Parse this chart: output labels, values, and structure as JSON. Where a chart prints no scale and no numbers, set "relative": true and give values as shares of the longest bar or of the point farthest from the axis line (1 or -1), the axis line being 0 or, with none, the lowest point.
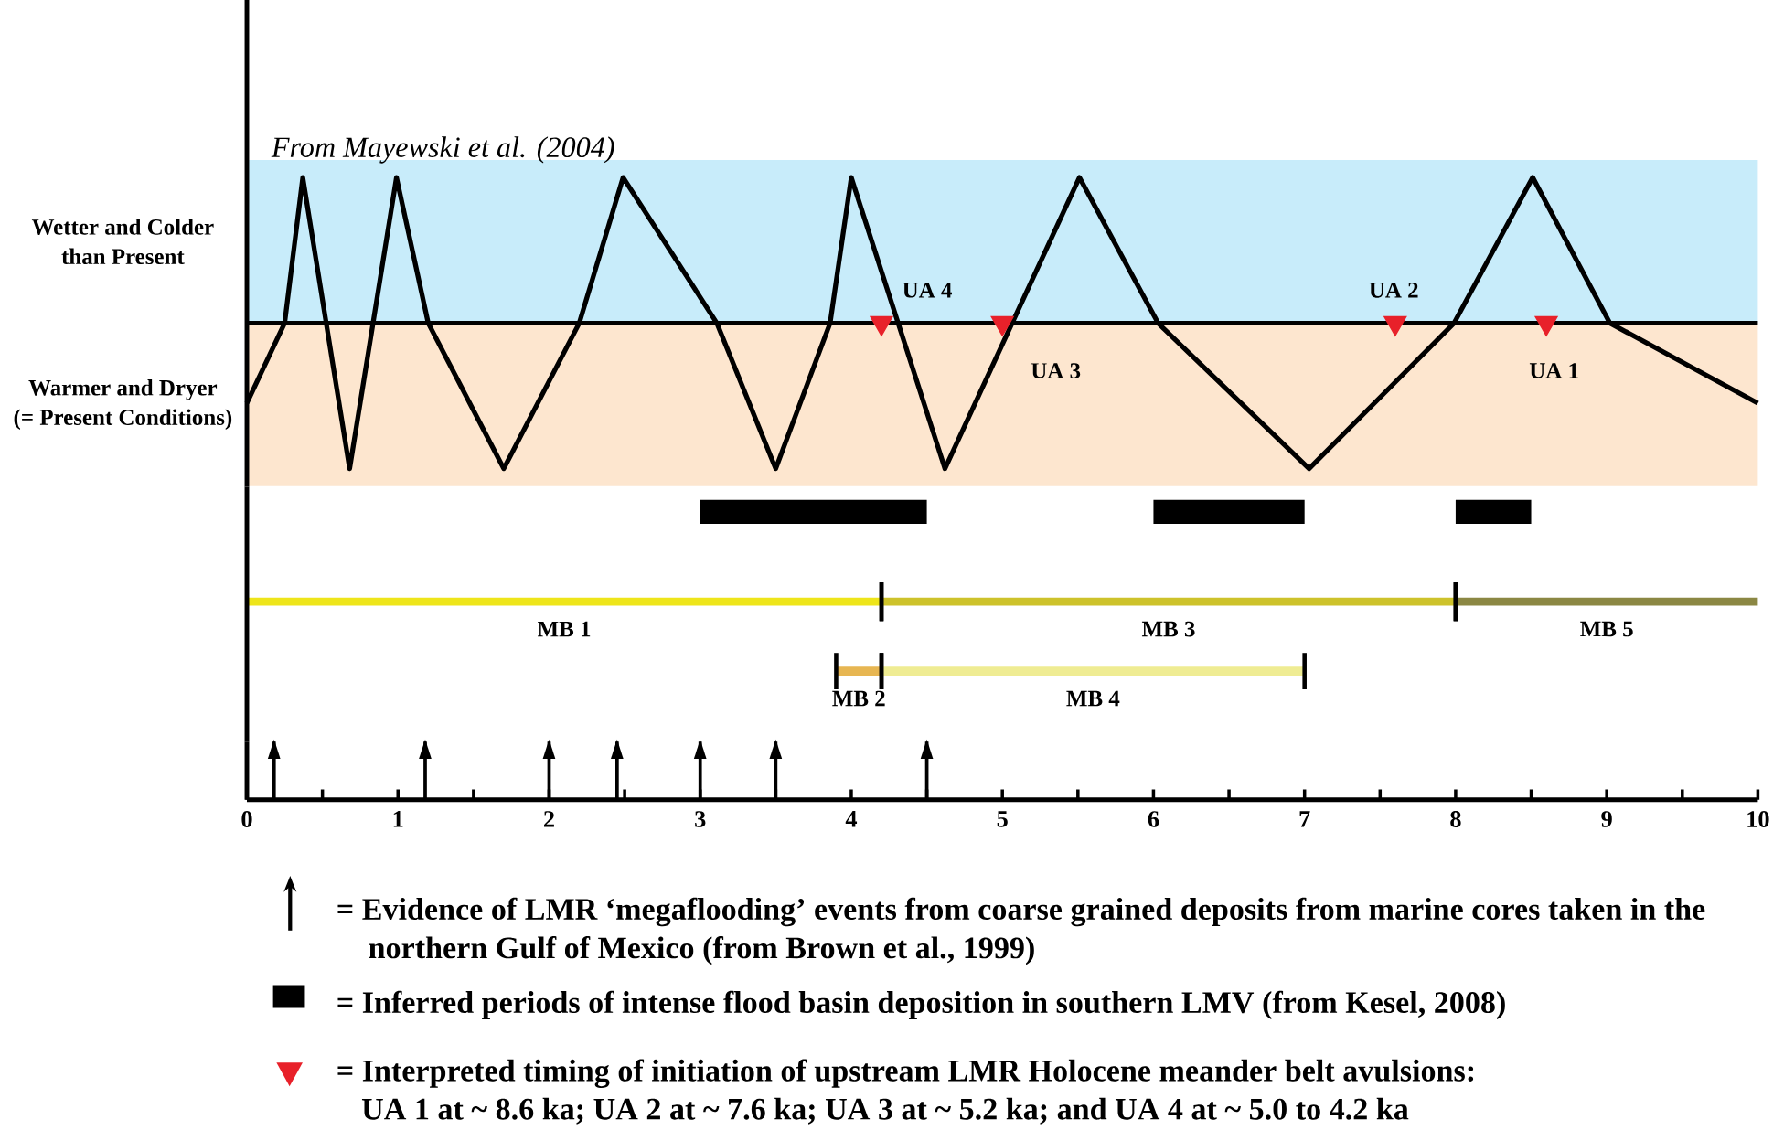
{
  "chart_data": [
    {
      "type": "line",
      "relative": true,
      "xlim": [
        0,
        10
      ],
      "tick_labels": false,
      "bands": [
        {
          "axis": "y",
          "from": 0,
          "to": 1.12,
          "label": "Wetter and Colder than Present",
          "color": "#c8ecfa"
        },
        {
          "axis": "y",
          "from": -1.12,
          "to": 0,
          "label": "Warmer and Dryer (= Present Conditions)",
          "color": "#fde6cf"
        }
      ],
      "series": [
        {
          "color": "#000000",
          "x": [
            0,
            0.25,
            0.37,
            0.68,
            0.99,
            1.2,
            1.7,
            2.2,
            2.49,
            3.11,
            3.5,
            3.86,
            4.0,
            4.62,
            5.51,
            6.03,
            7.03,
            7.99,
            8.51,
            9.02,
            10
          ],
          "values": [
            -0.55,
            0,
            1,
            -1,
            1,
            0,
            -1,
            0,
            1,
            0,
            -1,
            0,
            1,
            -1,
            1,
            0,
            -1,
            0,
            1,
            0,
            -0.55
          ]
        },
        {
          "type": "scatter",
          "marker": "triangle",
          "color": "#e8212a",
          "x": [
            4.2,
            5.0,
            7.6,
            8.6
          ],
          "values": [
            0,
            0,
            0,
            0
          ]
        }
      ],
      "annotations": [
        "From Mayewski et al. (2004)",
        "UA 4",
        "UA 3",
        "UA 2",
        "UA 1"
      ]
    },
    {
      "type": "bar",
      "orientation": "horizontal",
      "categories": [
        null,
        null,
        null
      ],
      "xlim": [
        0,
        10
      ],
      "tick_labels": false,
      "series": [
        {
          "color": "#000000",
          "values": [
            1.5,
            null,
            null
          ],
          "base": [
            3,
            null,
            null
          ]
        },
        {
          "color": "#000000",
          "values": [
            1,
            null,
            null
          ],
          "base": [
            6,
            null,
            null
          ]
        },
        {
          "color": "#000000",
          "values": [
            0.5,
            null,
            null
          ],
          "base": [
            8,
            null,
            null
          ]
        },
        {
          "name": "MB 1",
          "color": "#eee51a",
          "values": [
            null,
            4.2,
            null
          ],
          "base": [
            null,
            0,
            null
          ]
        },
        {
          "name": "MB 3",
          "color": "#cdc22b",
          "values": [
            null,
            3.8,
            null
          ],
          "base": [
            null,
            4.2,
            null
          ]
        },
        {
          "name": "MB 5",
          "color": "#8b8743",
          "values": [
            null,
            2,
            null
          ],
          "base": [
            null,
            8,
            null
          ]
        },
        {
          "name": "MB 2",
          "color": "#e7b652",
          "values": [
            null,
            null,
            0.3
          ],
          "base": [
            null,
            null,
            3.9
          ]
        },
        {
          "name": "MB 4",
          "color": "#efec93",
          "values": [
            null,
            null,
            2.8
          ],
          "base": [
            null,
            null,
            4.2
          ]
        }
      ]
    },
    {
      "type": "bar",
      "relative": true,
      "xlim": [
        0,
        10
      ],
      "xticks": [
        0,
        {
          "value": 0.5,
          "label": null
        },
        1,
        {
          "value": 1.5,
          "label": null
        },
        2,
        {
          "value": 2.5,
          "label": null
        },
        3,
        {
          "value": 3.5,
          "label": null
        },
        4,
        {
          "value": 4.5,
          "label": null
        },
        5,
        {
          "value": 5.5,
          "label": null
        },
        6,
        {
          "value": 6.5,
          "label": null
        },
        7,
        {
          "value": 7.5,
          "label": null
        },
        8,
        {
          "value": 8.5,
          "label": null
        },
        9,
        {
          "value": 9.5,
          "label": null
        },
        10
      ],
      "series": [
        {
          "color": "#000000",
          "x": [
            0.18,
            1.18,
            2.0,
            2.45,
            3.0,
            3.5,
            4.5
          ],
          "values": [
            1,
            1,
            1,
            1,
            1,
            1,
            1
          ]
        }
      ],
      "annotations": [
        "= Evidence of LMR ‘megaflooding’ events from coarse grained deposits from marine cores taken in the northern Gulf of Mexico (from Brown et al., 1999)",
        "= Inferred periods of intense flood basin deposition in southern LMV (from Kesel, 2008)",
        "= Interpreted timing of initiation of upstream LMR Holocene meander belt avulsions:",
        "UA 1 at ~ 8.6 ka; UA 2 at ~ 7.6 ka; UA 3 at ~ 5.2 ka; and UA 4 at ~ 5.0 to 4.2 ka"
      ]
    }
  ]
}
